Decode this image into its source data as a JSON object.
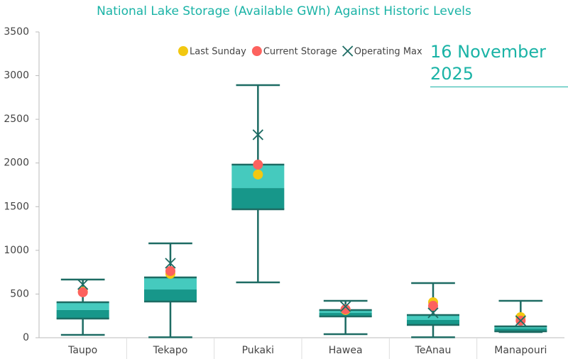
{
  "chart_data": {
    "type": "box",
    "title": "National Lake Storage (Available GWh) Against Historic Levels",
    "annotation": "16 November 2025",
    "categories": [
      "Taupo",
      "Tekapo",
      "Pukaki",
      "Hawea",
      "TeAnau",
      "Manapouri"
    ],
    "box": {
      "min": [
        32,
        5,
        633,
        41,
        5,
        65
      ],
      "q1": [
        219,
        414,
        1470,
        244,
        146,
        73
      ],
      "median": [
        317,
        552,
        1713,
        284,
        203,
        106
      ],
      "q3": [
        406,
        690,
        1981,
        317,
        260,
        130
      ],
      "max": [
        666,
        1080,
        2891,
        422,
        625,
        422
      ],
      "lower_color": "#17978a",
      "upper_color": "#45cabe",
      "whisker_color": "#1d6b63"
    },
    "series": [
      {
        "name": "Last Sunday",
        "color": "#f2c811",
        "marker": "circle",
        "values": [
          527,
          731,
          1868,
          317,
          406,
          236
        ]
      },
      {
        "name": "Current Storage",
        "color": "#fd625e",
        "marker": "circle",
        "values": [
          520,
          763,
          1981,
          325,
          365,
          195
        ]
      },
      {
        "name": "Operating Max",
        "color": "#1d6b63",
        "marker": "x",
        "values": [
          609,
          853,
          2323,
          357,
          284,
          195
        ]
      }
    ],
    "ylim": [
      0,
      3500
    ],
    "yticks": [
      0,
      500,
      1000,
      1500,
      2000,
      2500,
      3000,
      3500
    ],
    "grid": false
  }
}
